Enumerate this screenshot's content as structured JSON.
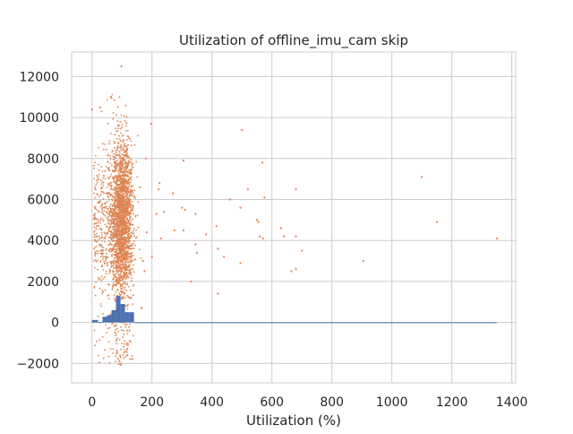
{
  "chart_data": {
    "type": "scatter",
    "title": "Utilization of offline_imu_cam skip",
    "xlabel": "Utilization (%)",
    "ylabel": "",
    "xlim": [
      -68,
      1413
    ],
    "ylim": [
      -2950,
      13200
    ],
    "xticks": [
      0,
      200,
      400,
      600,
      800,
      1000,
      1200,
      1400
    ],
    "yticks": [
      -2000,
      0,
      2000,
      4000,
      6000,
      8000,
      10000,
      12000
    ],
    "xtick_labels": [
      "0",
      "200",
      "400",
      "600",
      "800",
      "1000",
      "1200",
      "1400"
    ],
    "ytick_labels": [
      "−2000",
      "0",
      "2000",
      "4000",
      "6000",
      "8000",
      "10000",
      "12000"
    ],
    "grid": true,
    "series": [
      {
        "name": "histogram",
        "kind": "bar",
        "color": "#4c72b0",
        "bins": [
          {
            "x0": 0,
            "x1": 20,
            "value": 120
          },
          {
            "x0": 20,
            "x1": 35,
            "value": 20
          },
          {
            "x0": 35,
            "x1": 50,
            "value": 280
          },
          {
            "x0": 50,
            "x1": 65,
            "value": 350
          },
          {
            "x0": 65,
            "x1": 80,
            "value": 600
          },
          {
            "x0": 80,
            "x1": 95,
            "value": 1300
          },
          {
            "x0": 95,
            "x1": 110,
            "value": 900
          },
          {
            "x0": 110,
            "x1": 125,
            "value": 500
          },
          {
            "x0": 125,
            "x1": 140,
            "value": 500
          },
          {
            "x0": 140,
            "x1": 1350,
            "value": 10
          }
        ]
      },
      {
        "name": "samples",
        "kind": "scatter",
        "color": "#dd8452",
        "points": [
          [
            0,
            10400
          ],
          [
            27,
            10500
          ],
          [
            63,
            11000
          ],
          [
            98,
            12500
          ],
          [
            197,
            9700
          ],
          [
            305,
            7900
          ],
          [
            500,
            9400
          ],
          [
            568,
            7800
          ],
          [
            575,
            6100
          ],
          [
            680,
            6500
          ],
          [
            520,
            6500
          ],
          [
            460,
            6000
          ],
          [
            1100,
            7100
          ],
          [
            1150,
            4900
          ],
          [
            1350,
            4100
          ],
          [
            905,
            3000
          ],
          [
            700,
            3500
          ],
          [
            665,
            2500
          ],
          [
            680,
            2600
          ],
          [
            495,
            2900
          ],
          [
            420,
            1400
          ],
          [
            330,
            2000
          ],
          [
            570,
            4100
          ],
          [
            560,
            4200
          ],
          [
            630,
            4600
          ],
          [
            640,
            4200
          ],
          [
            680,
            4200
          ],
          [
            415,
            4700
          ],
          [
            420,
            3600
          ],
          [
            440,
            3200
          ],
          [
            380,
            4300
          ],
          [
            350,
            3400
          ],
          [
            345,
            3800
          ],
          [
            305,
            4500
          ],
          [
            275,
            4500
          ],
          [
            230,
            4100
          ],
          [
            270,
            6300
          ],
          [
            240,
            5400
          ],
          [
            225,
            6800
          ],
          [
            345,
            5300
          ],
          [
            300,
            5600
          ],
          [
            310,
            5500
          ],
          [
            495,
            5600
          ],
          [
            550,
            5000
          ],
          [
            555,
            4900
          ],
          [
            170,
            3000
          ],
          [
            200,
            3200
          ],
          [
            180,
            8000
          ],
          [
            165,
            700
          ],
          [
            175,
            2500
          ],
          [
            182,
            4400
          ],
          [
            215,
            5300
          ],
          [
            222,
            6500
          ],
          [
            160,
            6600
          ]
        ]
      }
    ]
  }
}
